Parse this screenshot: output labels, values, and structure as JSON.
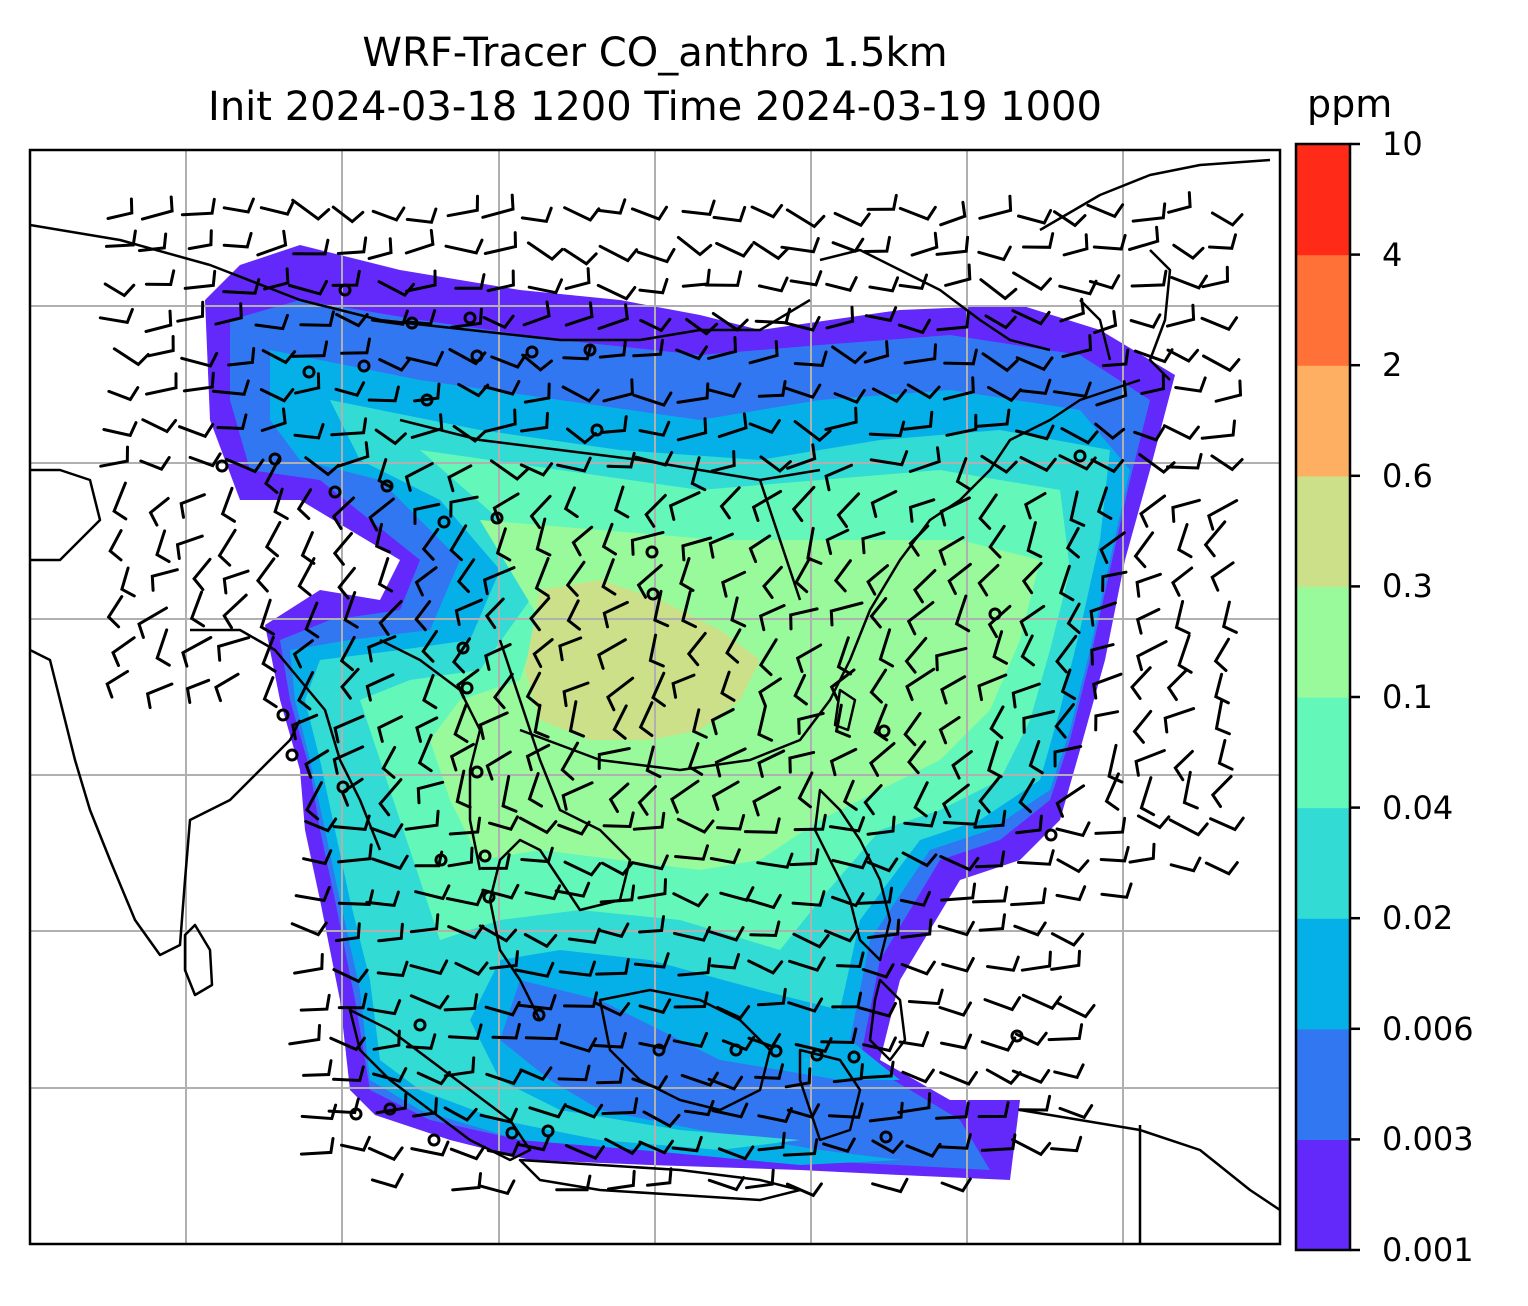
{
  "title": {
    "line1": "WRF-Tracer CO_anthro 1.5km",
    "line2": "Init 2024-03-18 1200 Time 2024-03-19 1000"
  },
  "colorbar": {
    "units": "ppm",
    "levels": [
      "0.001",
      "0.003",
      "0.006",
      "0.02",
      "0.04",
      "0.1",
      "0.3",
      "0.6",
      "2",
      "4",
      "10"
    ],
    "colors": [
      "#6328fa",
      "#3277f2",
      "#05b0e8",
      "#33dbd5",
      "#63f8ba",
      "#99fa9b",
      "#cce089",
      "#ffaf62",
      "#ff7137",
      "#ff2a17"
    ]
  },
  "map": {
    "gridlines": "on",
    "wind_barbs": "on",
    "coastlines": "on"
  }
}
